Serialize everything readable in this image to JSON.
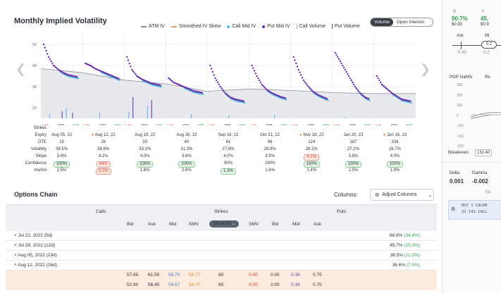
{
  "chart": {
    "title": "Monthly Implied Volatility",
    "legend": [
      {
        "label": "ATM IV",
        "kind": "line",
        "color": "#8a8f98"
      },
      {
        "label": "Smoothed IV Skew",
        "kind": "line",
        "color": "#f0a070"
      },
      {
        "label": "Call Mid IV",
        "kind": "dot",
        "color": "#4fb6e0"
      },
      {
        "label": "Put Mid IV",
        "kind": "dot",
        "color": "#6a2fa8"
      },
      {
        "label": "Call Volume",
        "kind": "bar",
        "color": "#6fb8e8"
      },
      {
        "label": "Put Volume",
        "kind": "bar",
        "color": "#555555"
      }
    ],
    "toggle": {
      "volume": "Volume",
      "open_interest": "Open Interest"
    },
    "y_ticks": [
      "50",
      "40",
      "30",
      "20"
    ],
    "slice_labels": {
      "low": "Low",
      "atm": "ATM",
      "high": "High"
    }
  },
  "chart_data": {
    "type": "scatter",
    "title": "Monthly Implied Volatility",
    "ylim": [
      15,
      55
    ],
    "y_ticks": [
      20,
      30,
      40,
      50
    ],
    "series": [
      {
        "name": "ATM IV",
        "values": [
          38.5,
          36.6,
          33.1,
          31.3,
          27.8,
          28.9,
          28.2,
          27.2,
          26.7
        ]
      },
      {
        "name": "Put Mid IV",
        "slices": [
          [
            50,
            44,
            40,
            38,
            36.5,
            35.5,
            35,
            34.5
          ],
          [
            41,
            40,
            38.5,
            37.5,
            36.5,
            35.5,
            34.5,
            33.5
          ],
          [
            44,
            38,
            35,
            33.5,
            32.5,
            31.5,
            31,
            30.5
          ],
          [
            34,
            32,
            31,
            30,
            29,
            28,
            27.5,
            27
          ],
          [
            40,
            34,
            30,
            27,
            25,
            24,
            23.5,
            23
          ],
          [
            40,
            35,
            31,
            28.5,
            27,
            26,
            25,
            24.5
          ],
          [
            44,
            38,
            33,
            30,
            27.5,
            26,
            25,
            24
          ],
          [
            46,
            42,
            38,
            34,
            30,
            27,
            25,
            24
          ],
          [
            35,
            31,
            29,
            27,
            25.5,
            24,
            23.5,
            23
          ]
        ]
      }
    ]
  },
  "metrics": {
    "row_labels": [
      "Strikes",
      "Expiry",
      "DTE",
      "Volatility",
      "Slope",
      "Confidence",
      "mwVol"
    ],
    "columns": [
      {
        "expiry": "Aug 05, 22",
        "dte": "19",
        "vol": "38.5%",
        "slope": "3.6%",
        "conf": "100%",
        "mwvol": "2.5%",
        "flag": false,
        "conf_style": "green",
        "slope_style": "",
        "mw_style": ""
      },
      {
        "expiry": "Aug 12, 22",
        "dte": "26",
        "vol": "36.6%",
        "slope": "4.1%",
        "conf": "64%",
        "mwvol": "5.5%",
        "flag": true,
        "conf_style": "red",
        "slope_style": "",
        "mw_style": "red"
      },
      {
        "expiry": "Aug 19, 22",
        "dte": "33",
        "vol": "33.1%",
        "slope": "4.0%",
        "conf": "100%",
        "mwvol": "1.8%",
        "flag": false,
        "conf_style": "green",
        "slope_style": "",
        "mw_style": ""
      },
      {
        "expiry": "Aug 26, 22",
        "dte": "40",
        "vol": "31.3%",
        "slope": "3.6%",
        "conf": "100%",
        "mwvol": "2.8%",
        "flag": false,
        "conf_style": "green",
        "slope_style": "",
        "mw_style": ""
      },
      {
        "expiry": "Sep 16, 22",
        "dte": "61",
        "vol": "27.8%",
        "slope": "4.0%",
        "conf": "90%",
        "mwvol": "1.3%",
        "flag": false,
        "conf_style": "",
        "slope_style": "",
        "mw_style": "green"
      },
      {
        "expiry": "Oct 21, 22",
        "dte": "96",
        "vol": "28.9%",
        "slope": "3.9%",
        "conf": "100%",
        "mwvol": "1.6%",
        "flag": false,
        "conf_style": "",
        "slope_style": "",
        "mw_style": ""
      },
      {
        "expiry": "Nov 18, 22",
        "dte": "124",
        "vol": "28.2%",
        "slope": "4.1%",
        "conf": "100%",
        "mwvol": "1.4%",
        "flag": true,
        "conf_style": "green",
        "slope_style": "red",
        "mw_style": ""
      },
      {
        "expiry": "Jan 20, 23",
        "dte": "187",
        "vol": "27.2%",
        "slope": "3.8%",
        "conf": "100%",
        "mwvol": "1.5%",
        "flag": false,
        "conf_style": "green",
        "slope_style": "",
        "mw_style": ""
      },
      {
        "expiry": "Jun 16, 23",
        "dte": "334",
        "vol": "26.7%",
        "slope": "4.0%",
        "conf": "100%",
        "mwvol": "1.8%",
        "flag": true,
        "conf_style": "green",
        "slope_style": "",
        "mw_style": ""
      }
    ]
  },
  "options_chain": {
    "title": "Options Chain",
    "columns_label": "Columns:",
    "adjust_button": "Adjust Columns",
    "headers": {
      "calls": "Calls",
      "strikes": "Strikes",
      "puts": "Puts",
      "show_all": "Show All",
      "call_cols": [
        "Bid",
        "Ask",
        "Mid",
        "SMV"
      ],
      "put_cols": [
        "SMV",
        "Bid",
        "Mid",
        "Ask"
      ]
    },
    "expiries": [
      {
        "label": "Jul 22, 2022 (5d)",
        "iv": "68.8%",
        "chg": "(34.8%)",
        "open": false
      },
      {
        "label": "Jul 29, 2022 (12d)",
        "iv": "45.7%",
        "chg": "(15.3%)",
        "open": false
      },
      {
        "label": "Aug 05, 2022 (19d)",
        "iv": "38.5%",
        "chg": "(11.2%)",
        "open": false
      },
      {
        "label": "Aug 12, 2022 (26d)",
        "iv": "36.6%",
        "chg": "(7.0%)",
        "open": true
      }
    ],
    "rows": [
      {
        "call_bid": "57.85",
        "call_ask": "61.55",
        "call_mid": "59.70",
        "call_smv": "59.77",
        "strike": "80",
        "put_smv": "0.00",
        "put_bid": "0.00",
        "put_mid": "0.38",
        "put_ask": "0.75"
      },
      {
        "call_bid": "52.90",
        "call_ask": "56.45",
        "call_mid": "54.67",
        "call_smv": "54.77",
        "strike": "85",
        "put_smv": "0.00",
        "put_bid": "0.00",
        "put_mid": "0.38",
        "put_ask": "0.75"
      }
    ]
  },
  "sidebar": {
    "b_label": "B",
    "f_label": "F",
    "b_pct": "90.7%",
    "f_pct": "45.",
    "b_price": "$0.93",
    "f_price": "$0.9",
    "ask_label": "Ask",
    "mid_label": "Mi",
    "slider_left": "-0.45",
    "slider_mid": "0.2",
    "slider_val": "0.2",
    "pop_label": "POP:",
    "pop_value": "NaN%",
    "re_label": "Re",
    "pl_ticks": [
      "300",
      "200",
      "100",
      "0",
      "-100",
      "-200",
      "-300"
    ],
    "breakeven_label": "Breakeven:",
    "breakeven_value": "132.40",
    "delta_label": "Delta",
    "gamma_label": "Gamma",
    "delta_value": "0.001",
    "gamma_value": "-0.002",
    "th_label": "TH",
    "order_line1": "BUY 1 CALEN",
    "order_line2": "22 141 CALL"
  }
}
